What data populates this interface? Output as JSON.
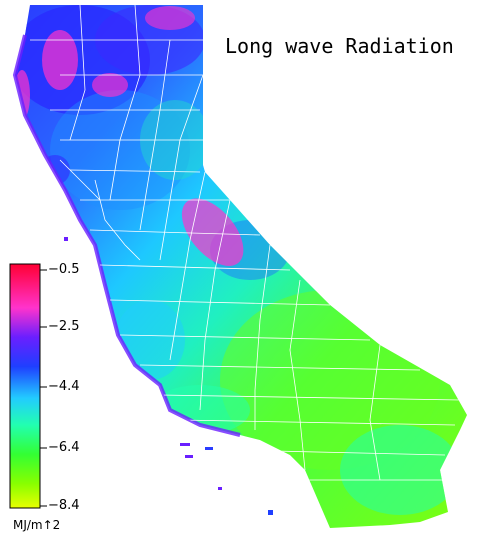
{
  "map": {
    "title": "Long wave Radiation",
    "region": "California",
    "colors": {
      "land_low": "#66ff00",
      "land_mid": "#00e6cc",
      "land_high": "#3366ff",
      "hotspot": "#ff33cc",
      "county_lines": "#ffffff",
      "background": "#ffffff"
    }
  },
  "legend": {
    "ticks": [
      "−0.5",
      "−2.5",
      "−4.4",
      "−6.4",
      "−8.4"
    ],
    "unit": "MJ/m↑2",
    "gradient_stops": [
      "#ff0033",
      "#ff33cc",
      "#6a1fff",
      "#1f3fff",
      "#22ccff",
      "#22ffb0",
      "#33ff33",
      "#88ff00",
      "#e8ff00"
    ]
  }
}
